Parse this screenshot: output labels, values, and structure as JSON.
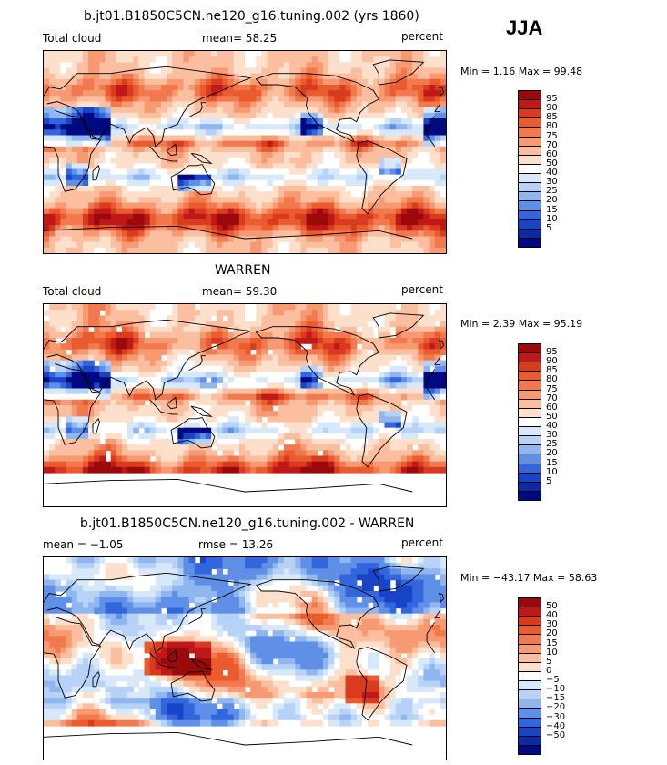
{
  "season": "JJA",
  "colors": {
    "warm": [
      "#9b0a0a",
      "#c01818",
      "#d83b1e",
      "#ea5b2e",
      "#f2794e",
      "#f79a72",
      "#fbbfa0",
      "#fde0cc"
    ],
    "white": "#ffffff",
    "cool": [
      "#d8e8fb",
      "#b6d2f7",
      "#8fb6ef",
      "#5f8fe6",
      "#3366dd",
      "#1a44c8",
      "#0a2aa8",
      "#000a80"
    ],
    "land": "#000000"
  },
  "chart_data": [
    {
      "type": "heatmap",
      "title": "b.jt01.B1850C5CN.ne120_g16.tuning.002 (yrs 1860)",
      "left_label": "Total cloud",
      "center_label": "mean=  58.25",
      "units": "percent",
      "min_max_text": "Min =    1.16  Max =   99.48",
      "min": 1.16,
      "max": 99.48,
      "mean": 58.25,
      "colorbar_levels": [
        "95",
        "90",
        "85",
        "80",
        "75",
        "70",
        "60",
        "50",
        "40",
        "30",
        "25",
        "20",
        "15",
        "10",
        "5"
      ],
      "mask_south": false
    },
    {
      "type": "heatmap",
      "title": "WARREN",
      "left_label": "Total cloud",
      "center_label": "mean=  59.30",
      "units": "percent",
      "min_max_text": "Min =    2.39  Max =   95.19",
      "min": 2.39,
      "max": 95.19,
      "mean": 59.3,
      "colorbar_levels": [
        "95",
        "90",
        "85",
        "80",
        "75",
        "70",
        "60",
        "50",
        "40",
        "30",
        "25",
        "20",
        "15",
        "10",
        "5"
      ],
      "mask_south": true
    },
    {
      "type": "heatmap",
      "title": "b.jt01.B1850C5CN.ne120_g16.tuning.002 - WARREN",
      "left_label": "mean =   −1.05",
      "center_label": "rmse =   13.26",
      "units": "percent",
      "min_max_text": "Min = −43.17  Max =   58.63",
      "min": -43.17,
      "max": 58.63,
      "mean": -1.05,
      "rmse": 13.26,
      "colorbar_levels": [
        "50",
        "40",
        "30",
        "20",
        "15",
        "10",
        "5",
        "0",
        "−5",
        "−10",
        "−15",
        "−20",
        "−30",
        "−40",
        "−50"
      ],
      "mask_south": true
    }
  ]
}
